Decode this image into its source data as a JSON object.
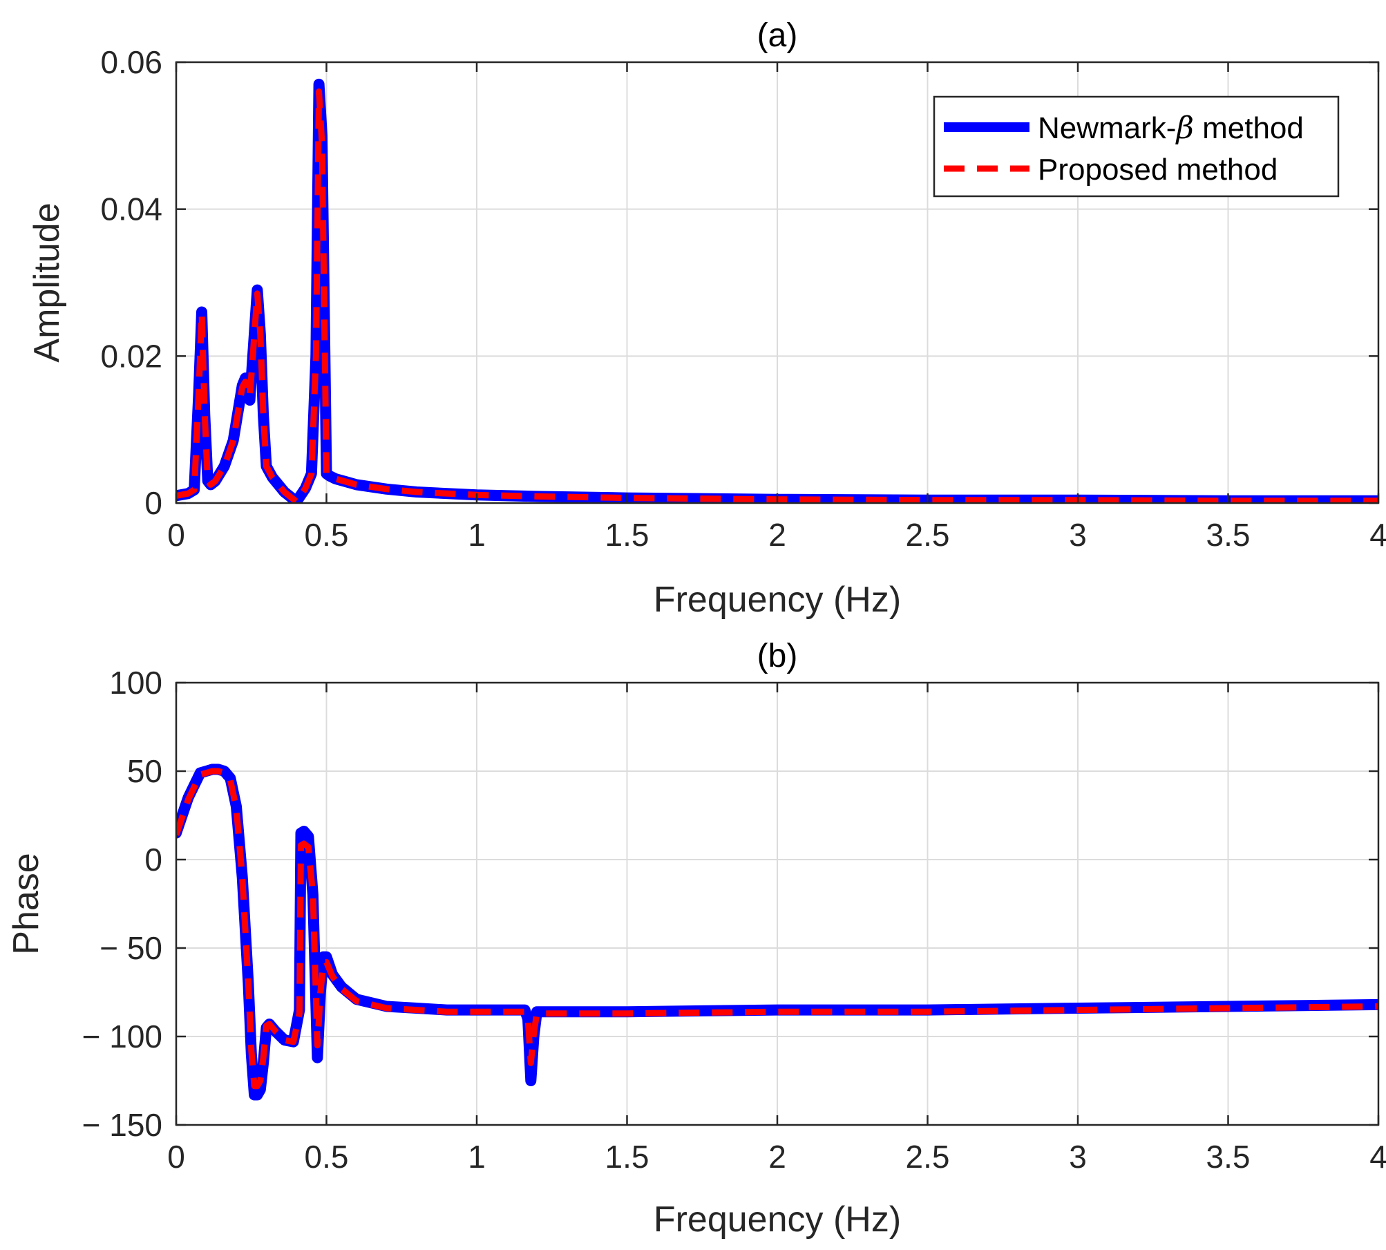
{
  "chart_data": [
    {
      "type": "line",
      "title": "(a)",
      "xlabel": "Frequency (Hz)",
      "ylabel": "Amplitude",
      "xlim": [
        0,
        4
      ],
      "ylim": [
        0,
        0.06
      ],
      "xticks": [
        "0",
        "0.5",
        "1",
        "1.5",
        "2",
        "2.5",
        "3",
        "3.5",
        "4"
      ],
      "xtick_values": [
        0,
        0.5,
        1,
        1.5,
        2,
        2.5,
        3,
        3.5,
        4
      ],
      "yticks": [
        "0",
        "0.02",
        "0.04",
        "0.06"
      ],
      "ytick_values": [
        0,
        0.02,
        0.04,
        0.06
      ],
      "grid": true,
      "legend": {
        "position": "top-right",
        "entries": [
          {
            "prefix": "Newmark-",
            "symbol": "β",
            "suffix": " method",
            "series": 0
          },
          {
            "prefix": "Proposed method",
            "symbol": "",
            "suffix": "",
            "series": 1
          }
        ]
      },
      "series": [
        {
          "name": "Newmark-β method",
          "color": "#0000ff",
          "style": "solid",
          "x": [
            0,
            0.04,
            0.06,
            0.075,
            0.085,
            0.095,
            0.105,
            0.115,
            0.13,
            0.16,
            0.19,
            0.22,
            0.23,
            0.245,
            0.255,
            0.27,
            0.28,
            0.29,
            0.3,
            0.32,
            0.36,
            0.4,
            0.41,
            0.43,
            0.45,
            0.465,
            0.475,
            0.485,
            0.5,
            0.51,
            0.53,
            0.6,
            0.7,
            0.8,
            1,
            1.2,
            1.5,
            2,
            2.5,
            3,
            3.5,
            4
          ],
          "y": [
            0.001,
            0.0013,
            0.0018,
            0.015,
            0.026,
            0.012,
            0.003,
            0.0025,
            0.003,
            0.005,
            0.0085,
            0.016,
            0.017,
            0.014,
            0.02,
            0.029,
            0.023,
            0.012,
            0.005,
            0.0035,
            0.0015,
            0.0002,
            0.0008,
            0.002,
            0.004,
            0.02,
            0.057,
            0.05,
            0.004,
            0.0037,
            0.0033,
            0.0025,
            0.0019,
            0.0015,
            0.0011,
            0.0009,
            0.0007,
            0.0005,
            0.0004,
            0.0004,
            0.0003,
            0.0003
          ]
        },
        {
          "name": "Proposed method",
          "color": "#ff0000",
          "style": "dashed",
          "x": [
            0,
            0.04,
            0.06,
            0.075,
            0.085,
            0.095,
            0.105,
            0.115,
            0.13,
            0.16,
            0.19,
            0.22,
            0.23,
            0.245,
            0.255,
            0.27,
            0.28,
            0.29,
            0.3,
            0.32,
            0.36,
            0.4,
            0.41,
            0.43,
            0.45,
            0.465,
            0.475,
            0.485,
            0.5,
            0.51,
            0.53,
            0.6,
            0.7,
            0.8,
            1,
            1.2,
            1.5,
            2,
            2.5,
            3,
            3.5,
            4
          ],
          "y": [
            0.001,
            0.0013,
            0.0018,
            0.015,
            0.0258,
            0.012,
            0.003,
            0.0025,
            0.003,
            0.005,
            0.0085,
            0.0158,
            0.0165,
            0.0145,
            0.02,
            0.0285,
            0.023,
            0.012,
            0.005,
            0.0035,
            0.0015,
            0.0002,
            0.0008,
            0.002,
            0.004,
            0.02,
            0.056,
            0.049,
            0.004,
            0.0037,
            0.0033,
            0.0025,
            0.0019,
            0.0015,
            0.0011,
            0.0009,
            0.0007,
            0.0005,
            0.0004,
            0.0004,
            0.0003,
            0.0003
          ]
        }
      ]
    },
    {
      "type": "line",
      "title": "(b)",
      "xlabel": "Frequency (Hz)",
      "ylabel": "Phase",
      "xlim": [
        0,
        4
      ],
      "ylim": [
        -150,
        100
      ],
      "xticks": [
        "0",
        "0.5",
        "1",
        "1.5",
        "2",
        "2.5",
        "3",
        "3.5",
        "4"
      ],
      "xtick_values": [
        0,
        0.5,
        1,
        1.5,
        2,
        2.5,
        3,
        3.5,
        4
      ],
      "yticks": [
        "100",
        "50",
        "0",
        "− 50",
        "− 100",
        "− 150"
      ],
      "ytick_values": [
        100,
        50,
        0,
        -50,
        -100,
        -150
      ],
      "grid": true,
      "series": [
        {
          "name": "Newmark-β method",
          "color": "#0000ff",
          "style": "solid",
          "x": [
            0,
            0.02,
            0.04,
            0.06,
            0.08,
            0.1,
            0.12,
            0.14,
            0.16,
            0.18,
            0.2,
            0.22,
            0.24,
            0.25,
            0.26,
            0.27,
            0.28,
            0.29,
            0.3,
            0.31,
            0.33,
            0.36,
            0.39,
            0.41,
            0.415,
            0.425,
            0.44,
            0.455,
            0.47,
            0.48,
            0.49,
            0.5,
            0.52,
            0.55,
            0.6,
            0.7,
            0.8,
            0.9,
            1,
            1.1,
            1.16,
            1.17,
            1.18,
            1.19,
            1.2,
            1.3,
            1.5,
            2,
            2.5,
            3,
            3.5,
            4
          ],
          "y": [
            15,
            25,
            35,
            42,
            49,
            50,
            51,
            51,
            50,
            46,
            30,
            -10,
            -70,
            -110,
            -133,
            -133,
            -130,
            -115,
            -95,
            -93,
            -97,
            -102,
            -103,
            -85,
            15,
            16,
            13,
            -20,
            -112,
            -75,
            -55,
            -55,
            -65,
            -72,
            -79,
            -83,
            -84,
            -85,
            -85,
            -85,
            -85,
            -90,
            -125,
            -100,
            -86,
            -86,
            -86,
            -85,
            -85,
            -84,
            -83,
            -82
          ]
        },
        {
          "name": "Proposed method",
          "color": "#ff0000",
          "style": "dashed",
          "x": [
            0,
            0.02,
            0.04,
            0.06,
            0.08,
            0.1,
            0.12,
            0.14,
            0.16,
            0.18,
            0.2,
            0.22,
            0.24,
            0.25,
            0.26,
            0.27,
            0.28,
            0.29,
            0.3,
            0.31,
            0.33,
            0.36,
            0.39,
            0.41,
            0.415,
            0.425,
            0.44,
            0.455,
            0.47,
            0.48,
            0.49,
            0.5,
            0.52,
            0.55,
            0.6,
            0.7,
            0.8,
            0.9,
            1,
            1.1,
            1.16,
            1.17,
            1.18,
            1.19,
            1.2,
            1.3,
            1.5,
            2,
            2.5,
            3,
            3.5,
            4
          ],
          "y": [
            14,
            24,
            34,
            41,
            48,
            49,
            50,
            50,
            49,
            45,
            29,
            -10,
            -70,
            -108,
            -128,
            -128,
            -125,
            -112,
            -94,
            -93,
            -97,
            -102,
            -103,
            -87,
            8,
            9,
            7,
            -20,
            -105,
            -75,
            -58,
            -58,
            -66,
            -73,
            -80,
            -84,
            -85,
            -86,
            -86,
            -86,
            -86,
            -90,
            -115,
            -98,
            -87,
            -87,
            -87,
            -86,
            -86,
            -85,
            -84,
            -83
          ]
        }
      ]
    }
  ]
}
